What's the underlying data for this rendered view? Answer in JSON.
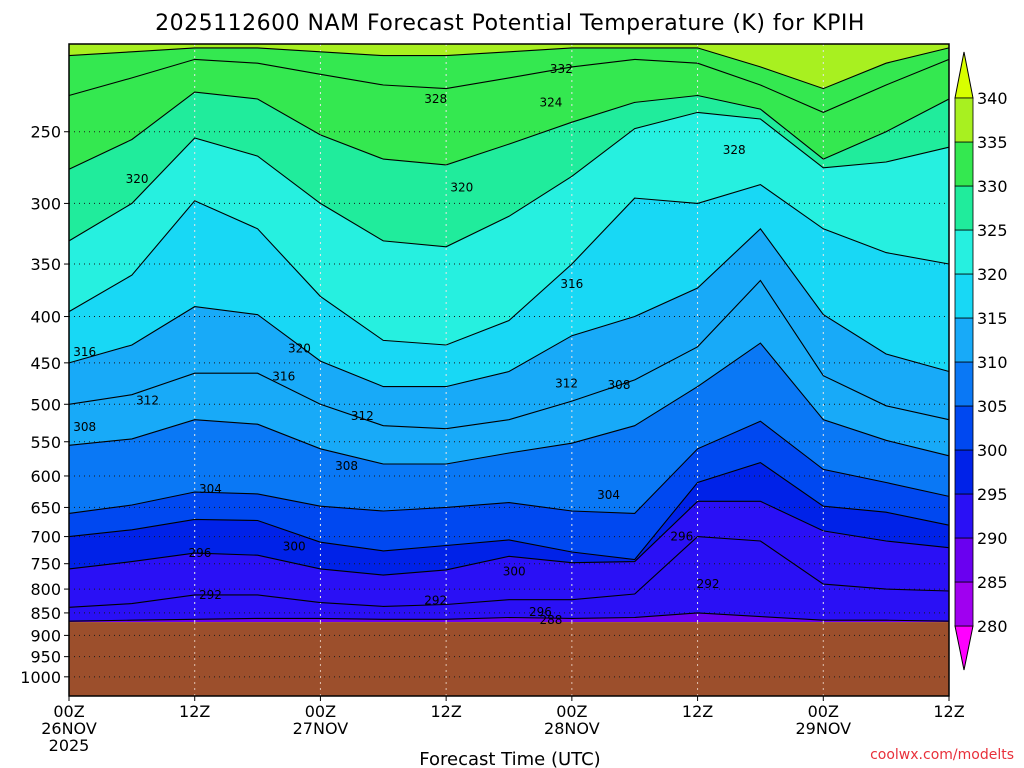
{
  "chart_data": {
    "type": "contour",
    "title": "2025112600 NAM Forecast Potential Temperature (K) for KPIH",
    "xlabel": "Forecast Time (UTC)",
    "ylabel": "",
    "credit": "coolwx.com/modelts",
    "x_ticks": [
      {
        "h": 0,
        "lines": [
          "00Z",
          "26NOV",
          "2025"
        ]
      },
      {
        "h": 12,
        "lines": [
          "12Z"
        ]
      },
      {
        "h": 24,
        "lines": [
          "00Z",
          "27NOV"
        ]
      },
      {
        "h": 36,
        "lines": [
          "12Z"
        ]
      },
      {
        "h": 48,
        "lines": [
          "00Z",
          "28NOV"
        ]
      },
      {
        "h": 60,
        "lines": [
          "12Z"
        ]
      },
      {
        "h": 72,
        "lines": [
          "00Z",
          "29NOV"
        ]
      },
      {
        "h": 84,
        "lines": [
          "12Z"
        ]
      }
    ],
    "xlim": [
      0,
      84
    ],
    "y_ticks": [
      250,
      300,
      350,
      400,
      450,
      500,
      550,
      600,
      650,
      700,
      750,
      800,
      850,
      900,
      950,
      1000
    ],
    "ylim": [
      1050,
      200
    ],
    "surface_pressure_hPa": 870,
    "colorbar": {
      "levels": [
        280,
        285,
        290,
        295,
        300,
        305,
        310,
        315,
        320,
        325,
        330,
        335,
        340
      ],
      "colors": [
        "#dd00ff",
        "#a000f0",
        "#6a00f0",
        "#2a10f5",
        "#0022e8",
        "#0048f0",
        "#0a78f5",
        "#18aaf8",
        "#18d8f5",
        "#26f0e0",
        "#20ec9c",
        "#34e850",
        "#a8f020",
        "#d8ff00"
      ],
      "under_color": "#ff00ff",
      "over_color": "#d8ff00"
    },
    "isentropes": [
      {
        "theta": 288,
        "pressure": [
          868,
          866,
          864,
          862,
          862,
          864,
          864,
          860,
          862,
          860,
          850,
          858,
          866,
          866,
          868
        ]
      },
      {
        "theta": 292,
        "pressure": [
          838,
          830,
          812,
          812,
          828,
          836,
          832,
          822,
          822,
          810,
          700,
          708,
          790,
          800,
          804
        ]
      },
      {
        "theta": 296,
        "pressure": [
          760,
          746,
          730,
          734,
          760,
          772,
          762,
          736,
          748,
          746,
          640,
          640,
          690,
          708,
          720
        ]
      },
      {
        "theta": 300,
        "pressure": [
          700,
          688,
          670,
          672,
          710,
          726,
          716,
          706,
          728,
          742,
          610,
          580,
          648,
          658,
          680
        ]
      },
      {
        "theta": 304,
        "pressure": [
          660,
          646,
          625,
          628,
          648,
          656,
          650,
          642,
          656,
          660,
          560,
          522,
          590,
          610,
          632
        ]
      },
      {
        "theta": 308,
        "pressure": [
          555,
          546,
          520,
          526,
          560,
          582,
          582,
          566,
          552,
          528,
          478,
          428,
          520,
          548,
          570
        ]
      },
      {
        "theta": 312,
        "pressure": [
          500,
          488,
          462,
          462,
          500,
          528,
          532,
          520,
          496,
          470,
          432,
          365,
          465,
          502,
          520
        ]
      },
      {
        "theta": 316,
        "pressure": [
          450,
          430,
          390,
          398,
          448,
          478,
          478,
          460,
          420,
          400,
          372,
          320,
          398,
          440,
          460
        ]
      },
      {
        "theta": 320,
        "pressure": [
          395,
          360,
          298,
          320,
          380,
          425,
          430,
          404,
          350,
          296,
          300,
          286,
          320,
          340,
          350
        ]
      },
      {
        "theta": 324,
        "pressure": [
          330,
          300,
          254,
          266,
          300,
          330,
          335,
          310,
          280,
          248,
          238,
          242,
          274,
          270,
          260
        ]
      },
      {
        "theta": 328,
        "pressure": [
          275,
          255,
          226,
          230,
          252,
          268,
          272,
          258,
          244,
          232,
          228,
          236,
          268,
          250,
          230
        ]
      },
      {
        "theta": 332,
        "pressure": [
          228,
          218,
          208,
          210,
          216,
          222,
          224,
          218,
          212,
          208,
          210,
          222,
          238,
          222,
          208
        ]
      },
      {
        "theta": 336,
        "pressure": [
          206,
          204,
          202,
          202,
          204,
          206,
          206,
          204,
          202,
          202,
          202,
          212,
          224,
          210,
          202
        ]
      }
    ],
    "isentrope_hours": [
      0,
      6,
      12,
      18,
      24,
      30,
      36,
      42,
      48,
      54,
      60,
      66,
      72,
      78,
      84
    ],
    "contour_labels": [
      {
        "text": "332",
        "h": 47,
        "p": 213
      },
      {
        "text": "328",
        "h": 35,
        "p": 230
      },
      {
        "text": "324",
        "h": 46,
        "p": 232
      },
      {
        "text": "328",
        "h": 63.5,
        "p": 262
      },
      {
        "text": "320",
        "h": 6.5,
        "p": 282
      },
      {
        "text": "320",
        "h": 37.5,
        "p": 288
      },
      {
        "text": "316",
        "h": 48,
        "p": 368
      },
      {
        "text": "320",
        "h": 22,
        "p": 434
      },
      {
        "text": "316",
        "h": 1.5,
        "p": 438
      },
      {
        "text": "316",
        "h": 20.5,
        "p": 466
      },
      {
        "text": "312",
        "h": 47.5,
        "p": 474
      },
      {
        "text": "308",
        "h": 52.5,
        "p": 476
      },
      {
        "text": "312",
        "h": 7.5,
        "p": 495
      },
      {
        "text": "312",
        "h": 28,
        "p": 515
      },
      {
        "text": "308",
        "h": 1.5,
        "p": 530
      },
      {
        "text": "308",
        "h": 26.5,
        "p": 585
      },
      {
        "text": "304",
        "h": 13.5,
        "p": 620
      },
      {
        "text": "304",
        "h": 51.5,
        "p": 630
      },
      {
        "text": "296",
        "h": 58.5,
        "p": 700
      },
      {
        "text": "300",
        "h": 21.5,
        "p": 718
      },
      {
        "text": "296",
        "h": 12.5,
        "p": 730
      },
      {
        "text": "300",
        "h": 42.5,
        "p": 765
      },
      {
        "text": "292",
        "h": 61,
        "p": 790
      },
      {
        "text": "292",
        "h": 13.5,
        "p": 812
      },
      {
        "text": "292",
        "h": 35,
        "p": 824
      },
      {
        "text": "296",
        "h": 45,
        "p": 848
      },
      {
        "text": "288",
        "h": 46,
        "p": 865
      }
    ]
  }
}
